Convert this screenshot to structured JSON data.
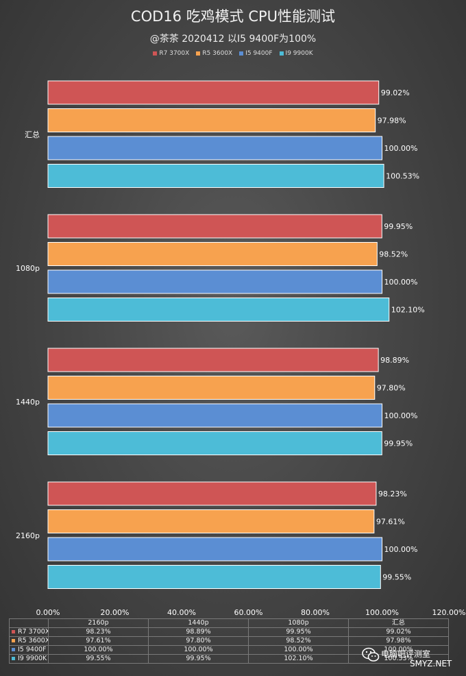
{
  "header": {
    "title": "COD16 吃鸡模式 CPU性能测试",
    "subtitle": "@茶茶 2020412   以I5 9400F为100%"
  },
  "colors": {
    "R7 3700X": "#cf5555",
    "R5 3600X": "#f7a24f",
    "I5 9400F": "#5b8ed3",
    "I9 9900K": "#4dbcd7"
  },
  "chart_data": {
    "type": "bar",
    "orientation": "horizontal",
    "title": "COD16 吃鸡模式 CPU性能测试",
    "subtitle": "@茶茶 2020412   以I5 9400F为100%",
    "categories": [
      "汇总",
      "1080p",
      "1440p",
      "2160p"
    ],
    "series": [
      {
        "name": "R7 3700X",
        "values": [
          99.02,
          99.95,
          98.89,
          98.23
        ]
      },
      {
        "name": "R5 3600X",
        "values": [
          97.98,
          98.52,
          97.8,
          97.61
        ]
      },
      {
        "name": "I5 9400F",
        "values": [
          100.0,
          100.0,
          100.0,
          100.0
        ]
      },
      {
        "name": "I9 9900K",
        "values": [
          100.53,
          102.1,
          99.95,
          99.55
        ]
      }
    ],
    "value_labels": [
      [
        "99.02%",
        "97.98%",
        "100.00%",
        "100.53%"
      ],
      [
        "99.95%",
        "98.52%",
        "100.00%",
        "102.10%"
      ],
      [
        "98.89%",
        "97.80%",
        "100.00%",
        "99.95%"
      ],
      [
        "98.23%",
        "97.61%",
        "100.00%",
        "99.55%"
      ]
    ],
    "xlim": [
      0,
      120
    ],
    "x_ticks": [
      "0.00%",
      "20.00%",
      "40.00%",
      "60.00%",
      "80.00%",
      "100.00%",
      "120.00%"
    ],
    "legend_position": "top",
    "grid": false,
    "data_table": {
      "columns": [
        "2160p",
        "1440p",
        "1080p",
        "汇总"
      ],
      "rows": [
        {
          "name": "R7 3700X",
          "cells": [
            "98.23%",
            "98.89%",
            "99.95%",
            "99.02%"
          ]
        },
        {
          "name": "R5 3600X",
          "cells": [
            "97.61%",
            "97.80%",
            "98.52%",
            "97.98%"
          ]
        },
        {
          "name": "I5 9400F",
          "cells": [
            "100.00%",
            "100.00%",
            "100.00%",
            "100.00%"
          ]
        },
        {
          "name": "I9 9900K",
          "cells": [
            "99.55%",
            "99.95%",
            "102.10%",
            "100.53%"
          ]
        }
      ]
    }
  },
  "watermark": {
    "name": "电脑吧评测室",
    "site": "SMYZ.NET"
  }
}
